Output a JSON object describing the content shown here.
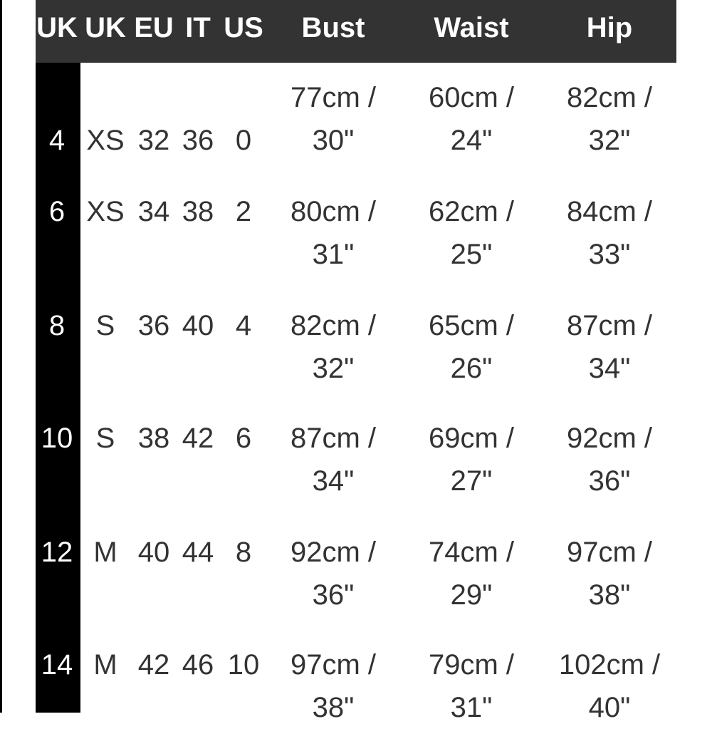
{
  "headers": [
    "UK",
    "UK",
    "EU",
    "IT",
    "US",
    "Bust",
    "Waist",
    "Hip"
  ],
  "rows": [
    {
      "uk": "4",
      "uk_letter": "XS",
      "eu": "32",
      "it": "36",
      "us": "0",
      "bust": [
        "77cm /",
        "30\""
      ],
      "waist": [
        "60cm /",
        "24\""
      ],
      "hip": [
        "82cm /",
        "32\""
      ]
    },
    {
      "uk": "6",
      "uk_letter": "XS",
      "eu": "34",
      "it": "38",
      "us": "2",
      "bust": [
        "80cm /",
        "31\""
      ],
      "waist": [
        "62cm /",
        "25\""
      ],
      "hip": [
        "84cm /",
        "33\""
      ]
    },
    {
      "uk": "8",
      "uk_letter": "S",
      "eu": "36",
      "it": "40",
      "us": "4",
      "bust": [
        "82cm /",
        "32\""
      ],
      "waist": [
        "65cm /",
        "26\""
      ],
      "hip": [
        "87cm /",
        "34\""
      ]
    },
    {
      "uk": "10",
      "uk_letter": "S",
      "eu": "38",
      "it": "42",
      "us": "6",
      "bust": [
        "87cm /",
        "34\""
      ],
      "waist": [
        "69cm /",
        "27\""
      ],
      "hip": [
        "92cm /",
        "36\""
      ]
    },
    {
      "uk": "12",
      "uk_letter": "M",
      "eu": "40",
      "it": "44",
      "us": "8",
      "bust": [
        "92cm /",
        "36\""
      ],
      "waist": [
        "74cm /",
        "29\""
      ],
      "hip": [
        "97cm /",
        "38\""
      ]
    },
    {
      "uk": "14",
      "uk_letter": "M",
      "eu": "42",
      "it": "46",
      "us": "10",
      "bust": [
        "97cm /",
        "38\""
      ],
      "waist": [
        "79cm /",
        "31\""
      ],
      "hip": [
        "102cm /",
        "40\""
      ]
    }
  ]
}
